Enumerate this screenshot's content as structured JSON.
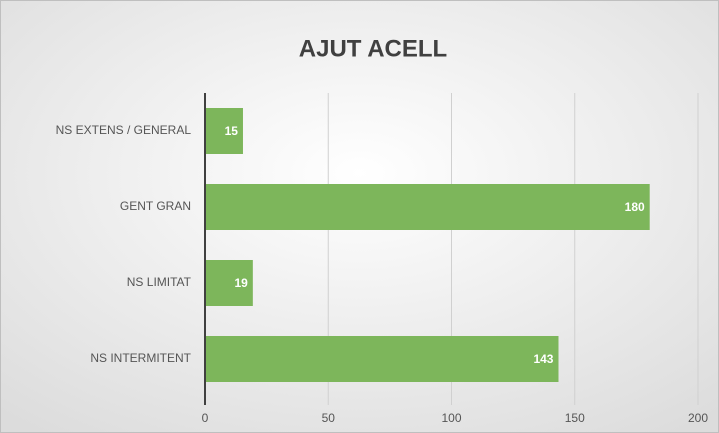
{
  "chart_data": {
    "type": "bar",
    "orientation": "horizontal",
    "title": "AJUT ACELL",
    "categories": [
      "NS EXTENS / GENERAL",
      "GENT GRAN",
      "NS LIMITAT",
      "NS INTERMITENT"
    ],
    "values": [
      15,
      180,
      19,
      143
    ],
    "color": "#7db65b",
    "xlim": [
      0,
      200
    ],
    "xticks": [
      0,
      50,
      100,
      150,
      200
    ],
    "grid": true
  }
}
